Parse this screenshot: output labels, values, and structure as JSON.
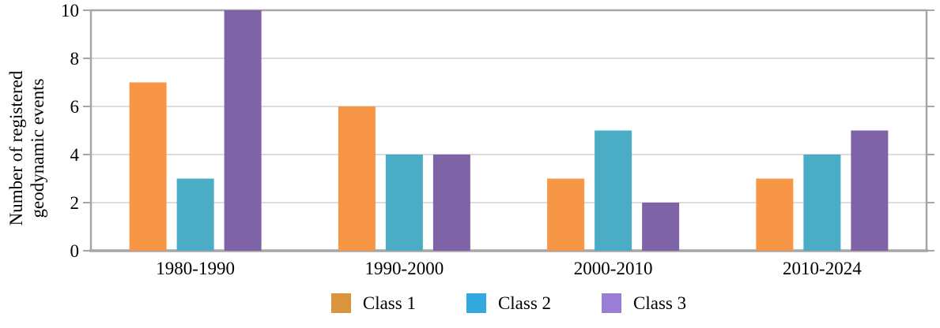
{
  "chart_data": {
    "type": "bar",
    "title": "",
    "categories": [
      "1980-1990",
      "1990-2000",
      "2000-2010",
      "2010-2024"
    ],
    "series": [
      {
        "name": "Class 1",
        "values": [
          7,
          6,
          3,
          3
        ],
        "bar_color": "#F79646",
        "legend_color": "#D9953B"
      },
      {
        "name": "Class 2",
        "values": [
          3,
          4,
          5,
          4
        ],
        "bar_color": "#4BACC6",
        "legend_color": "#33A9DF"
      },
      {
        "name": "Class 3",
        "values": [
          10,
          4,
          2,
          5
        ],
        "bar_color": "#7E64A6",
        "legend_color": "#9B7DD6"
      }
    ],
    "xlabel": "",
    "ylabel": "Number of registered\ngeodynamic events",
    "ylim": [
      0,
      10
    ],
    "yticks": [
      0,
      2,
      4,
      6,
      8,
      10
    ],
    "grid": true,
    "legend_position": "bottom"
  },
  "colors": {
    "background": "#FFFFFF",
    "grid": "#DCDCDC",
    "border": "#A6A6A6",
    "text": "#000000"
  }
}
